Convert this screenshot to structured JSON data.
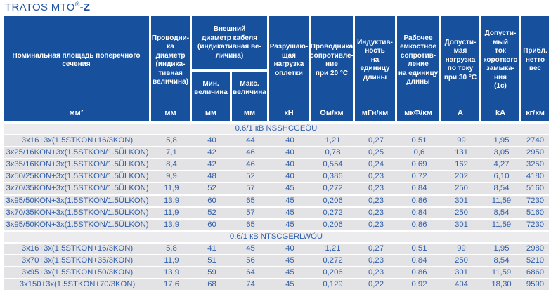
{
  "title": {
    "main": "TRATOS MTO",
    "reg": "®",
    "dash": "-",
    "z": "Z"
  },
  "colors": {
    "header_bg": "#17509C",
    "row_bg": "#e3e3e5",
    "section_row_bg": "#ececee",
    "data_text": "#2f5fa9",
    "title_text": "#1c52a0"
  },
  "table": {
    "header": {
      "cross_section": {
        "label": "Номинальная площадь поперечного\nсечения",
        "unit": "мм²"
      },
      "conductor_diameter": {
        "label": "Проводни-\nка\nдиаметр\n(индика-\nтивная\nвеличина)",
        "unit": "мм"
      },
      "outer_diameter_group": {
        "label": "Внешний\nдиаметр кабеля\n(индикативная ве-\nличина)",
        "min": {
          "label": "Мин.\nвеличина",
          "unit": "мм"
        },
        "max": {
          "label": "Макс.\nвеличина",
          "unit": "мм"
        }
      },
      "braid_breaking_load": {
        "label": "Разрушаю-\nщая\nнагрузка\nоплетки",
        "unit": "кН"
      },
      "conductor_resistance": {
        "label": "Проводника\nсопротивле-\nние\nпри 20 °C",
        "unit": "Ом/км"
      },
      "inductance": {
        "label": "Индуктив-\nность\nна единицу\nдлины",
        "unit": "мГн/км"
      },
      "capacitance": {
        "label": "Рабочее\nемкостное\nсопротив-\nление\nна единицу\nдлины",
        "unit": "мкФ/км"
      },
      "current_rating": {
        "label": "Допусти-\nмая\nнагрузка\nпо току\nпри 30 °C",
        "unit": "А"
      },
      "short_circuit_current": {
        "label": "Допусти-\nмый\nток\nкороткого\nзамыка-\nния\n(1с)",
        "unit": "kA"
      },
      "net_weight": {
        "label": "Прибл.\nнетто\nвес",
        "unit": "кг/км"
      }
    },
    "sections": [
      {
        "header": "0.6/1 кВ NSSHCGEÖU",
        "rows": [
          [
            "3x16+3x(1.5STKON+16/3KON)",
            "5,8",
            "40",
            "44",
            "40",
            "1,21",
            "0,27",
            "0,51",
            "99",
            "1,95",
            "2740"
          ],
          [
            "3x25/16KON+3x(1.5STKON/1.5ÜLKON)",
            "7,1",
            "42",
            "46",
            "40",
            "0,78",
            "0,25",
            "0,6",
            "131",
            "3,05",
            "2950"
          ],
          [
            "3x35/16KON+3x(1.5STKON/1.5ÜLKON)",
            "8,4",
            "42",
            "46",
            "40",
            "0,554",
            "0,24",
            "0,69",
            "162",
            "4,27",
            "3250"
          ],
          [
            "3x50/25KON+3x(1.5STKON/1.5ÜLKON)",
            "9,9",
            "48",
            "52",
            "40",
            "0,386",
            "0,23",
            "0,72",
            "202",
            "6,10",
            "4180"
          ],
          [
            "3x70/35KON+3x(1.5STKON/1.5ÜLKON)",
            "11,9",
            "52",
            "57",
            "45",
            "0,272",
            "0,23",
            "0,84",
            "250",
            "8,54",
            "5160"
          ],
          [
            "3x95/50KON+3x(1.5STKON/1.5ÜLKON)",
            "13,9",
            "60",
            "65",
            "45",
            "0,206",
            "0,23",
            "0,86",
            "301",
            "11,59",
            "7230"
          ],
          [
            "3x70/35KON+3x(1.5STKON/1.5ÜLKON)",
            "11,9",
            "52",
            "57",
            "45",
            "0,272",
            "0,23",
            "0,84",
            "250",
            "8,54",
            "5160"
          ],
          [
            "3x95/50KON+3x(1.5STKON/1.5ÜLKON)",
            "13,9",
            "60",
            "65",
            "45",
            "0,206",
            "0,23",
            "0,86",
            "301",
            "11,59",
            "7230"
          ]
        ]
      },
      {
        "header": "0.6/1 кВ NTSCGERLWÖU",
        "rows": [
          [
            "3x16+3x(1.5STKON+16/3KON)",
            "5,8",
            "41",
            "45",
            "40",
            "1,21",
            "0,27",
            "0,51",
            "99",
            "1,95",
            "2980"
          ],
          [
            "3x70+3x(1.5STKON+35/3KON)",
            "11,9",
            "51",
            "56",
            "45",
            "0,272",
            "0,23",
            "0,84",
            "250",
            "8,54",
            "5210"
          ],
          [
            "3x95+3x(1.5STKON+50/3KON)",
            "13,9",
            "59",
            "64",
            "45",
            "0,206",
            "0,23",
            "0,86",
            "301",
            "11,59",
            "6860"
          ],
          [
            "3x150+3x(1.5STKON+70/3KON)",
            "17,6",
            "68",
            "74",
            "45",
            "0,129",
            "0,22",
            "0,92",
            "404",
            "18,30",
            "9590"
          ]
        ]
      }
    ]
  }
}
